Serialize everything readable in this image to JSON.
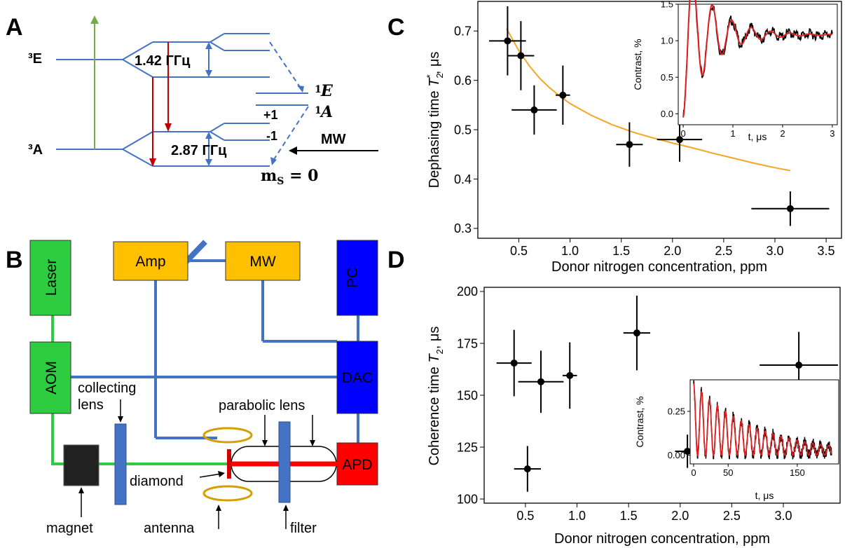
{
  "panels": {
    "A": {
      "label": "A",
      "excited_state": "³E",
      "ground_state": "³A",
      "excited_splitting": "1.42 ГГц",
      "ground_splitting": "2.87 ГГц",
      "singlet_upper": "E",
      "singlet_upper_sup": "1",
      "singlet_lower": "A",
      "singlet_lower_sup": "1",
      "ms_plus": "+1",
      "ms_minus": "-1",
      "ms_zero_m": "m",
      "ms_zero_sub": "S",
      "ms_zero_rest": " = 0",
      "mw": "MW",
      "colors": {
        "levels": "#4472c4",
        "green": "#70ad47",
        "red": "#c00000"
      }
    },
    "B": {
      "label": "B",
      "blocks": {
        "laser": "Laser",
        "aom": "AOM",
        "amp": "Amp",
        "mw": "MW",
        "pc": "PC",
        "dac": "DAC",
        "apd": "APD"
      },
      "labels": {
        "collecting": "collecting",
        "lens": "lens",
        "parabolic": "parabolic lens",
        "diamond": "diamond",
        "magnet": "magnet",
        "antenna": "antenna",
        "filter": "filter"
      },
      "colors": {
        "green_block": "#2ecc40",
        "orange_block": "#ffc000",
        "blue_block": "#0000ff",
        "red_block": "#ff0000",
        "wire": "#4472c4",
        "beam_green": "#2ecc40",
        "beam_red": "#ff0000",
        "ring": "#e6b800"
      }
    },
    "C": {
      "label": "C"
    },
    "D": {
      "label": "D"
    }
  },
  "chart_data": [
    {
      "id": "C-main",
      "type": "scatter",
      "xlabel": "Donor nitrogen concentration, ppm",
      "ylabel_main": "Dephasing time ",
      "ylabel_sym": "T",
      "ylabel_sub": "2",
      "ylabel_sup": "*",
      "ylabel_unit": ", μs",
      "xlim": [
        0.1,
        3.65
      ],
      "ylim": [
        0.28,
        0.76
      ],
      "xticks": [
        "0.5",
        "1.0",
        "1.5",
        "2.0",
        "2.5",
        "3.0",
        "3.5"
      ],
      "xtick_values": [
        0.5,
        1.0,
        1.5,
        2.0,
        2.5,
        3.0,
        3.5
      ],
      "yticks": [
        "0.3",
        "0.4",
        "0.5",
        "0.6",
        "0.7"
      ],
      "ytick_values": [
        0.3,
        0.4,
        0.5,
        0.6,
        0.7
      ],
      "points": [
        {
          "x": 0.39,
          "y": 0.68,
          "xerr": 0.18,
          "yerr": 0.07
        },
        {
          "x": 0.52,
          "y": 0.65,
          "xerr": 0.13,
          "yerr": 0.07
        },
        {
          "x": 0.65,
          "y": 0.54,
          "xerr": 0.22,
          "yerr": 0.05
        },
        {
          "x": 0.93,
          "y": 0.57,
          "xerr": 0.07,
          "yerr": 0.06
        },
        {
          "x": 1.58,
          "y": 0.47,
          "xerr": 0.13,
          "yerr": 0.045
        },
        {
          "x": 2.07,
          "y": 0.48,
          "xerr": 0.22,
          "yerr": 0.045
        },
        {
          "x": 3.15,
          "y": 0.34,
          "xerr": 0.38,
          "yerr": 0.035
        }
      ],
      "fit": {
        "color": "#f5a623",
        "x": [
          0.38,
          0.5,
          0.6,
          0.7,
          0.8,
          0.9,
          1.0,
          1.2,
          1.4,
          1.6,
          1.8,
          2.0,
          2.2,
          2.4,
          2.6,
          2.8,
          3.0,
          3.15
        ],
        "y": [
          0.705,
          0.66,
          0.63,
          0.605,
          0.585,
          0.568,
          0.553,
          0.53,
          0.511,
          0.496,
          0.484,
          0.473,
          0.463,
          0.452,
          0.442,
          0.432,
          0.423,
          0.417
        ]
      }
    },
    {
      "id": "C-inset",
      "type": "line",
      "xlabel": "t, μs",
      "ylabel": "Contrast, %",
      "xlim": [
        -0.1,
        3.1
      ],
      "ylim": [
        -0.15,
        1.5
      ],
      "xticks": [
        "0",
        "1",
        "2",
        "3"
      ],
      "xtick_values": [
        0,
        1,
        2,
        3
      ],
      "yticks": [
        "0.0",
        "0.5",
        "1.0",
        "1.5"
      ],
      "ytick_values": [
        0.0,
        0.5,
        1.0,
        1.5
      ],
      "series_colors": {
        "data": "#000000",
        "fit": "#e02020"
      }
    },
    {
      "id": "D-main",
      "type": "scatter",
      "xlabel": "Donor nitrogen concentration, ppm",
      "ylabel_main": "Coherence time ",
      "ylabel_sym": "T",
      "ylabel_sub": "2",
      "ylabel_unit": ", μs",
      "xlim": [
        0.1,
        3.55
      ],
      "ylim": [
        98,
        202
      ],
      "xticks": [
        "0.5",
        "1.0",
        "1.5",
        "2.0",
        "2.5",
        "3.0"
      ],
      "xtick_values": [
        0.5,
        1.0,
        1.5,
        2.0,
        2.5,
        3.0
      ],
      "yticks": [
        "100",
        "125",
        "150",
        "175",
        "200"
      ],
      "ytick_values": [
        100,
        125,
        150,
        175,
        200
      ],
      "points": [
        {
          "x": 0.39,
          "y": 165.5,
          "xerr": 0.17,
          "yerr": 16
        },
        {
          "x": 0.52,
          "y": 114.5,
          "xerr": 0.13,
          "yerr": 11
        },
        {
          "x": 0.65,
          "y": 156.5,
          "xerr": 0.22,
          "yerr": 15
        },
        {
          "x": 0.93,
          "y": 159.5,
          "xerr": 0.07,
          "yerr": 16
        },
        {
          "x": 1.58,
          "y": 180,
          "xerr": 0.13,
          "yerr": 18
        },
        {
          "x": 2.07,
          "y": 123,
          "xerr": 0.12,
          "yerr": 8
        },
        {
          "x": 3.15,
          "y": 164.5,
          "xerr": 0.38,
          "yerr": 16
        }
      ]
    },
    {
      "id": "D-inset",
      "type": "line",
      "xlabel": "t, μs",
      "ylabel": "Contrast, %",
      "xlim": [
        -5,
        210
      ],
      "ylim": [
        -0.05,
        0.43
      ],
      "xticks": [
        "0",
        "50",
        "150"
      ],
      "xtick_values": [
        0,
        50,
        150
      ],
      "yticks": [
        "0.00",
        "0.25"
      ],
      "ytick_values": [
        0.0,
        0.25
      ],
      "series_colors": {
        "data": "#000000",
        "fit": "#e02020"
      }
    }
  ]
}
